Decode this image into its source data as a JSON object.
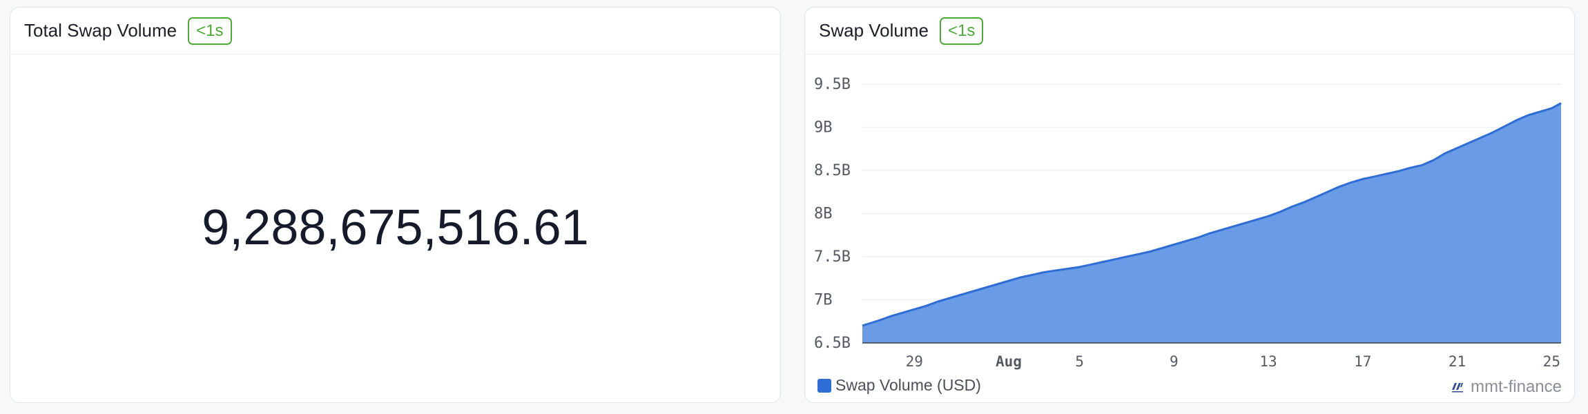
{
  "left_card": {
    "title": "Total Swap Volume",
    "badge": "<1s",
    "value": "9,288,675,516.61"
  },
  "right_card": {
    "title": "Swap Volume",
    "badge": "<1s",
    "watermark": "mmt-finance",
    "watermark_icon": "dune-logo-icon"
  },
  "colors": {
    "area_fill": "#6a9be6",
    "line": "#2f6cd3",
    "badge": "#4fa83a",
    "legend_swatch": "#2f6cd3"
  },
  "chart_data": {
    "type": "area",
    "ylim": [
      6.5,
      9.5
    ],
    "y_ticks": [
      "6.5B",
      "7B",
      "7.5B",
      "8B",
      "8.5B",
      "9B",
      "9.5B"
    ],
    "y_tick_values": [
      6.5,
      7.0,
      7.5,
      8.0,
      8.5,
      9.0,
      9.5
    ],
    "x_ticks": [
      "29",
      "Aug",
      "5",
      "9",
      "13",
      "17",
      "21",
      "25"
    ],
    "x_tick_days": [
      29,
      33,
      36,
      40,
      44,
      48,
      52,
      56
    ],
    "x_bold_tick": "Aug",
    "legend": "top-left below chart",
    "grid": true,
    "series": [
      {
        "name": "Swap Volume (USD)",
        "unit": "billions USD",
        "x_days_from_jul1": [
          26.8,
          27.5,
          28,
          28.5,
          29,
          29.5,
          30,
          30.5,
          31,
          31.5,
          32,
          32.5,
          33,
          33.5,
          34,
          34.5,
          35,
          35.5,
          36,
          36.5,
          37,
          37.5,
          38,
          38.5,
          39,
          39.5,
          40,
          40.5,
          41,
          41.5,
          42,
          42.5,
          43,
          43.5,
          44,
          44.5,
          45,
          45.5,
          46,
          46.5,
          47,
          47.5,
          48,
          48.5,
          49,
          49.5,
          50,
          50.5,
          51,
          51.5,
          52,
          52.5,
          53,
          53.5,
          54,
          54.5,
          55,
          55.5,
          56,
          56.4
        ],
        "values": [
          6.7,
          6.76,
          6.81,
          6.85,
          6.89,
          6.93,
          6.98,
          7.02,
          7.06,
          7.1,
          7.14,
          7.18,
          7.22,
          7.26,
          7.29,
          7.32,
          7.34,
          7.36,
          7.38,
          7.41,
          7.44,
          7.47,
          7.5,
          7.53,
          7.56,
          7.6,
          7.64,
          7.68,
          7.72,
          7.77,
          7.81,
          7.85,
          7.89,
          7.93,
          7.97,
          8.02,
          8.08,
          8.13,
          8.19,
          8.25,
          8.31,
          8.36,
          8.4,
          8.43,
          8.46,
          8.49,
          8.53,
          8.56,
          8.62,
          8.7,
          8.76,
          8.82,
          8.88,
          8.94,
          9.01,
          9.08,
          9.14,
          9.18,
          9.22,
          9.28
        ]
      }
    ]
  }
}
